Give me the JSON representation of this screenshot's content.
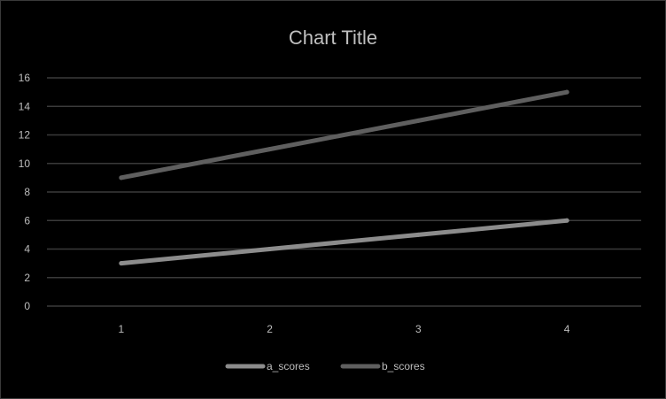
{
  "chart_data": {
    "type": "line",
    "title": "Chart Title",
    "categories": [
      "1",
      "2",
      "3",
      "4"
    ],
    "ylim": [
      0,
      16
    ],
    "yticks": [
      0,
      2,
      4,
      6,
      8,
      10,
      12,
      14,
      16
    ],
    "grid": true,
    "legend_position": "bottom",
    "series": [
      {
        "name": "a_scores",
        "values": [
          3,
          4,
          5,
          6
        ],
        "color": "#8c8c8c"
      },
      {
        "name": "b_scores",
        "values": [
          9,
          11,
          13,
          15
        ],
        "color": "#5f5f5f"
      }
    ]
  }
}
